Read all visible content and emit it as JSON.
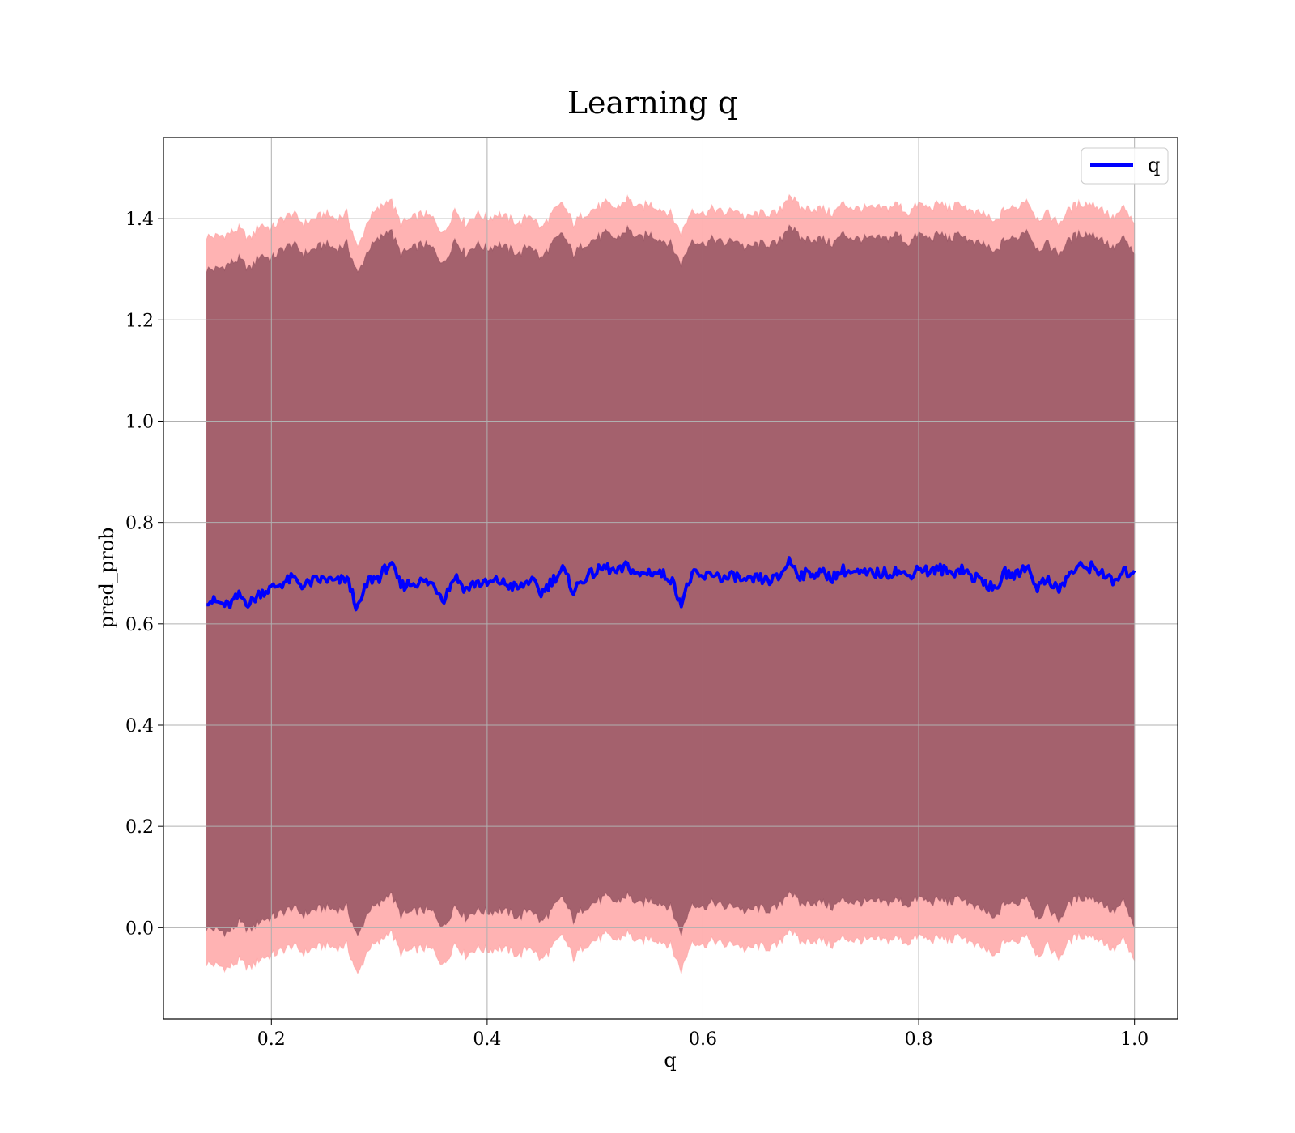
{
  "chart_data": {
    "type": "line",
    "title": "Learning q",
    "xlabel": "q",
    "ylabel": "pred_prob",
    "xlim": [
      0.1,
      1.04
    ],
    "ylim": [
      -0.18,
      1.56
    ],
    "xticks": [
      {
        "value": 0.2,
        "label": "0.2"
      },
      {
        "value": 0.4,
        "label": "0.4"
      },
      {
        "value": 0.6,
        "label": "0.6"
      },
      {
        "value": 0.8,
        "label": "0.8"
      },
      {
        "value": 1.0,
        "label": "1.0"
      }
    ],
    "yticks": [
      {
        "value": 0.0,
        "label": "0.0"
      },
      {
        "value": 0.2,
        "label": "0.2"
      },
      {
        "value": 0.4,
        "label": "0.4"
      },
      {
        "value": 0.6,
        "label": "0.6"
      },
      {
        "value": 0.8,
        "label": "0.8"
      },
      {
        "value": 1.0,
        "label": "1.0"
      },
      {
        "value": 1.2,
        "label": "1.2"
      },
      {
        "value": 1.4,
        "label": "1.4"
      }
    ],
    "grid": true,
    "legend": {
      "placement": "top-right",
      "entries": [
        "q"
      ]
    },
    "series": [
      {
        "name": "q",
        "color": "#0000ff",
        "x": [
          0.14,
          0.15,
          0.16,
          0.17,
          0.18,
          0.19,
          0.2,
          0.21,
          0.22,
          0.23,
          0.24,
          0.25,
          0.26,
          0.27,
          0.28,
          0.29,
          0.3,
          0.31,
          0.32,
          0.33,
          0.34,
          0.35,
          0.36,
          0.37,
          0.38,
          0.39,
          0.4,
          0.41,
          0.42,
          0.43,
          0.44,
          0.45,
          0.46,
          0.47,
          0.48,
          0.49,
          0.5,
          0.51,
          0.52,
          0.53,
          0.54,
          0.55,
          0.56,
          0.57,
          0.58,
          0.59,
          0.6,
          0.61,
          0.62,
          0.63,
          0.64,
          0.65,
          0.66,
          0.67,
          0.68,
          0.69,
          0.7,
          0.71,
          0.72,
          0.73,
          0.74,
          0.75,
          0.76,
          0.77,
          0.78,
          0.79,
          0.8,
          0.81,
          0.82,
          0.83,
          0.84,
          0.85,
          0.86,
          0.87,
          0.88,
          0.89,
          0.9,
          0.91,
          0.92,
          0.93,
          0.94,
          0.95,
          0.96,
          0.97,
          0.98,
          0.99,
          1.0
        ],
        "values": [
          0.648,
          0.642,
          0.635,
          0.655,
          0.64,
          0.662,
          0.67,
          0.68,
          0.69,
          0.675,
          0.685,
          0.688,
          0.682,
          0.69,
          0.628,
          0.686,
          0.692,
          0.72,
          0.675,
          0.68,
          0.684,
          0.678,
          0.65,
          0.695,
          0.668,
          0.682,
          0.678,
          0.685,
          0.676,
          0.67,
          0.688,
          0.66,
          0.685,
          0.708,
          0.665,
          0.69,
          0.702,
          0.712,
          0.7,
          0.715,
          0.695,
          0.703,
          0.7,
          0.69,
          0.642,
          0.698,
          0.69,
          0.7,
          0.688,
          0.695,
          0.68,
          0.69,
          0.685,
          0.69,
          0.725,
          0.696,
          0.7,
          0.7,
          0.692,
          0.706,
          0.7,
          0.698,
          0.7,
          0.7,
          0.705,
          0.693,
          0.712,
          0.702,
          0.708,
          0.7,
          0.71,
          0.692,
          0.686,
          0.665,
          0.7,
          0.695,
          0.716,
          0.672,
          0.69,
          0.665,
          0.7,
          0.712,
          0.712,
          0.702,
          0.68,
          0.7,
          0.705
        ],
        "band_upper_dark": [
          1.3,
          1.3,
          1.31,
          1.32,
          1.3,
          1.33,
          1.32,
          1.34,
          1.35,
          1.33,
          1.34,
          1.35,
          1.34,
          1.35,
          1.29,
          1.34,
          1.36,
          1.38,
          1.33,
          1.34,
          1.35,
          1.34,
          1.31,
          1.36,
          1.33,
          1.35,
          1.34,
          1.35,
          1.34,
          1.33,
          1.35,
          1.32,
          1.35,
          1.37,
          1.33,
          1.35,
          1.36,
          1.37,
          1.36,
          1.38,
          1.36,
          1.37,
          1.36,
          1.35,
          1.31,
          1.36,
          1.35,
          1.36,
          1.35,
          1.36,
          1.34,
          1.35,
          1.35,
          1.35,
          1.39,
          1.36,
          1.36,
          1.36,
          1.35,
          1.37,
          1.36,
          1.36,
          1.36,
          1.36,
          1.37,
          1.35,
          1.37,
          1.36,
          1.37,
          1.36,
          1.37,
          1.35,
          1.35,
          1.33,
          1.36,
          1.36,
          1.38,
          1.34,
          1.35,
          1.33,
          1.36,
          1.37,
          1.37,
          1.36,
          1.34,
          1.36,
          1.33
        ],
        "band_upper_light": [
          1.365,
          1.365,
          1.37,
          1.38,
          1.36,
          1.39,
          1.38,
          1.4,
          1.41,
          1.39,
          1.4,
          1.41,
          1.4,
          1.41,
          1.34,
          1.4,
          1.42,
          1.44,
          1.39,
          1.4,
          1.41,
          1.4,
          1.37,
          1.42,
          1.39,
          1.41,
          1.4,
          1.41,
          1.4,
          1.39,
          1.41,
          1.38,
          1.41,
          1.43,
          1.39,
          1.41,
          1.42,
          1.43,
          1.42,
          1.44,
          1.42,
          1.43,
          1.42,
          1.41,
          1.37,
          1.42,
          1.41,
          1.42,
          1.41,
          1.42,
          1.4,
          1.41,
          1.41,
          1.41,
          1.45,
          1.42,
          1.42,
          1.42,
          1.41,
          1.43,
          1.42,
          1.42,
          1.42,
          1.42,
          1.43,
          1.41,
          1.43,
          1.42,
          1.43,
          1.42,
          1.43,
          1.41,
          1.41,
          1.39,
          1.42,
          1.42,
          1.44,
          1.4,
          1.41,
          1.39,
          1.42,
          1.43,
          1.43,
          1.42,
          1.4,
          1.42,
          1.39
        ],
        "band_lower_dark": [
          0.0,
          -0.005,
          -0.01,
          0.01,
          -0.005,
          0.015,
          0.02,
          0.03,
          0.04,
          0.025,
          0.035,
          0.04,
          0.035,
          0.04,
          -0.02,
          0.035,
          0.045,
          0.07,
          0.025,
          0.03,
          0.035,
          0.03,
          0.0,
          0.045,
          0.02,
          0.035,
          0.03,
          0.035,
          0.03,
          0.02,
          0.04,
          0.01,
          0.035,
          0.06,
          0.015,
          0.04,
          0.05,
          0.06,
          0.05,
          0.065,
          0.045,
          0.055,
          0.05,
          0.04,
          -0.01,
          0.05,
          0.04,
          0.05,
          0.04,
          0.045,
          0.03,
          0.04,
          0.035,
          0.04,
          0.075,
          0.045,
          0.05,
          0.05,
          0.04,
          0.055,
          0.05,
          0.05,
          0.05,
          0.05,
          0.055,
          0.045,
          0.06,
          0.05,
          0.055,
          0.05,
          0.06,
          0.04,
          0.035,
          0.015,
          0.05,
          0.045,
          0.065,
          0.02,
          0.04,
          0.015,
          0.05,
          0.06,
          0.06,
          0.05,
          0.03,
          0.05,
          0.0
        ],
        "band_lower_light": [
          -0.07,
          -0.075,
          -0.08,
          -0.065,
          -0.08,
          -0.06,
          -0.055,
          -0.045,
          -0.035,
          -0.05,
          -0.04,
          -0.035,
          -0.04,
          -0.035,
          -0.095,
          -0.04,
          -0.03,
          -0.005,
          -0.05,
          -0.045,
          -0.04,
          -0.045,
          -0.075,
          -0.03,
          -0.055,
          -0.04,
          -0.045,
          -0.04,
          -0.045,
          -0.055,
          -0.035,
          -0.065,
          -0.04,
          -0.015,
          -0.06,
          -0.035,
          -0.025,
          -0.015,
          -0.025,
          -0.01,
          -0.03,
          -0.02,
          -0.025,
          -0.035,
          -0.085,
          -0.025,
          -0.035,
          -0.025,
          -0.035,
          -0.03,
          -0.045,
          -0.035,
          -0.04,
          -0.035,
          0.0,
          -0.03,
          -0.025,
          -0.025,
          -0.035,
          -0.02,
          -0.025,
          -0.025,
          -0.025,
          -0.025,
          -0.02,
          -0.03,
          -0.015,
          -0.025,
          -0.02,
          -0.025,
          -0.015,
          -0.035,
          -0.04,
          -0.06,
          -0.025,
          -0.03,
          -0.01,
          -0.055,
          -0.035,
          -0.06,
          -0.025,
          -0.015,
          -0.015,
          -0.025,
          -0.045,
          -0.025,
          -0.065
        ]
      }
    ],
    "colors": {
      "line": "#0000ff",
      "band_dark": "#8b4a5a",
      "band_light": "#ff9a9a",
      "grid": "#b0b0b0"
    }
  }
}
